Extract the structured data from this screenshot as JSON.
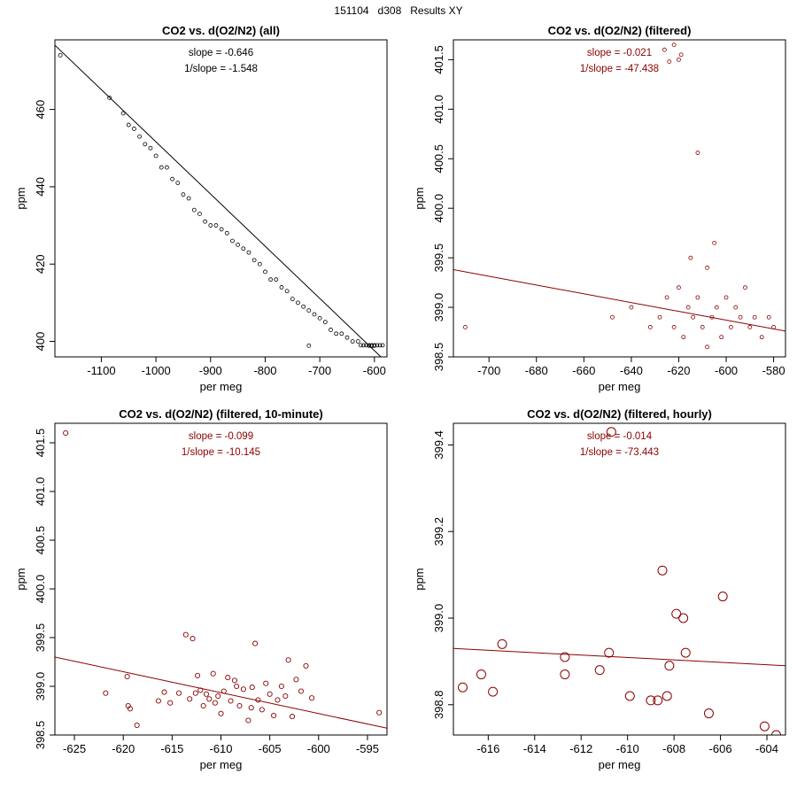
{
  "figure": {
    "title": "151104   d308   Results XY"
  },
  "chart_data": [
    {
      "type": "scatter",
      "title": "CO2 vs. d(O2/N2) (all)",
      "xlabel": "per meg",
      "ylabel": "ppm",
      "xlim": [
        -1185,
        -577
      ],
      "ylim": [
        396,
        478
      ],
      "xticks": [
        -1100,
        -1000,
        -900,
        -800,
        -700,
        -600
      ],
      "yticks": [
        400,
        420,
        440,
        460
      ],
      "point_color": "#000000",
      "line_color": "#000000",
      "annotations": [
        "slope = -0.646",
        "1/slope = -1.548"
      ],
      "fit": {
        "slope": -0.646,
        "x": [
          -1185,
          -577
        ],
        "y": [
          476.6,
          394.5
        ]
      },
      "series": [
        {
          "name": "all points",
          "color": "#000000",
          "x": [
            -1175,
            -1085,
            -1060,
            -1050,
            -1040,
            -1030,
            -1020,
            -1010,
            -1000,
            -990,
            -980,
            -970,
            -960,
            -950,
            -940,
            -930,
            -920,
            -910,
            -900,
            -890,
            -880,
            -870,
            -860,
            -850,
            -840,
            -830,
            -820,
            -810,
            -800,
            -790,
            -780,
            -770,
            -760,
            -750,
            -740,
            -730,
            -720,
            -710,
            -700,
            -690,
            -680,
            -670,
            -660,
            -650,
            -640,
            -630,
            -625,
            -620,
            -615,
            -610,
            -605,
            -600,
            -595,
            -590,
            -585,
            -720,
            -610,
            -605,
            -600
          ],
          "y": [
            474,
            463,
            459,
            456,
            455,
            453,
            451,
            450,
            448,
            445,
            445,
            442,
            441,
            438,
            437,
            434,
            433,
            431,
            430,
            430,
            429,
            428,
            426,
            425,
            424,
            423,
            421,
            420,
            418,
            416,
            416,
            414,
            413,
            411,
            410,
            409,
            408,
            407,
            406,
            405,
            403,
            402,
            402,
            401,
            400,
            400,
            399,
            399,
            399,
            399,
            399,
            399,
            399,
            399,
            399,
            398.9,
            398.9,
            398.8,
            398.9
          ]
        }
      ]
    },
    {
      "type": "scatter",
      "title": "CO2 vs. d(O2/N2) (filtered)",
      "xlabel": "per meg",
      "ylabel": "ppm",
      "xlim": [
        -715,
        -575
      ],
      "ylim": [
        398.5,
        401.7
      ],
      "xticks": [
        -700,
        -680,
        -660,
        -640,
        -620,
        -600,
        -580
      ],
      "yticks": [
        398.5,
        399.0,
        399.5,
        400.0,
        400.5,
        401.0,
        401.5
      ],
      "point_color": "#8b0000",
      "line_color": "#8b0000",
      "annotations": [
        "slope = -0.021",
        "1/slope = -47.438"
      ],
      "fit": {
        "slope": -0.021,
        "x": [
          -715,
          -575
        ],
        "y": [
          399.38,
          398.76
        ]
      },
      "series": [
        {
          "name": "filtered points",
          "color": "#8b0000",
          "x": [
            -710,
            -648,
            -640,
            -632,
            -628,
            -625,
            -622,
            -620,
            -618,
            -616,
            -614,
            -612,
            -610,
            -608,
            -606,
            -604,
            -602,
            -600,
            -598,
            -596,
            -594,
            -592,
            -590,
            -588,
            -585,
            -582,
            -580,
            -622,
            -619,
            -626,
            -620,
            -624,
            -612,
            -605,
            -615,
            -608
          ],
          "y": [
            398.8,
            398.9,
            399.0,
            398.8,
            398.9,
            399.1,
            398.8,
            399.2,
            398.7,
            399.0,
            398.9,
            399.1,
            398.8,
            399.4,
            398.9,
            399.0,
            398.7,
            399.1,
            398.8,
            399.0,
            398.9,
            399.2,
            398.8,
            398.9,
            398.7,
            398.9,
            398.8,
            401.65,
            401.55,
            401.6,
            401.5,
            401.48,
            400.56,
            399.65,
            399.5,
            398.6
          ]
        }
      ]
    },
    {
      "type": "scatter",
      "title": "CO2 vs. d(O2/N2) (filtered, 10-minute)",
      "xlabel": "per meg",
      "ylabel": "ppm",
      "xlim": [
        -627,
        -593
      ],
      "ylim": [
        398.5,
        401.7
      ],
      "xticks": [
        -625,
        -620,
        -615,
        -610,
        -605,
        -600,
        -595
      ],
      "yticks": [
        398.5,
        399.0,
        399.5,
        400.0,
        400.5,
        401.0,
        401.5
      ],
      "point_color": "#8b0000",
      "line_color": "#8b0000",
      "annotations": [
        "slope = -0.099",
        "1/slope = -10.145"
      ],
      "fit": {
        "slope": -0.099,
        "x": [
          -627,
          -593
        ],
        "y": [
          399.3,
          398.57
        ]
      },
      "series": [
        {
          "name": "10-minute means",
          "color": "#8b0000",
          "x": [
            -625.9,
            -621.8,
            -619.6,
            -619.5,
            -619.3,
            -618.6,
            -616.4,
            -615.8,
            -615.2,
            -614.3,
            -613.6,
            -613.2,
            -612.9,
            -612.4,
            -612.1,
            -611.8,
            -611.5,
            -611.2,
            -610.8,
            -610.3,
            -610.0,
            -609.7,
            -609.3,
            -609.0,
            -608.6,
            -608.1,
            -607.7,
            -607.2,
            -606.8,
            -606.5,
            -606.2,
            -605.8,
            -605.4,
            -605.0,
            -604.6,
            -604.2,
            -603.8,
            -603.4,
            -603.1,
            -602.7,
            -602.3,
            -601.8,
            -601.3,
            -600.7,
            -593.8,
            -612.6,
            -606.9,
            -610.6,
            -608.4
          ],
          "y": [
            401.6,
            398.93,
            399.1,
            398.8,
            398.77,
            398.6,
            398.85,
            398.94,
            398.83,
            398.93,
            399.53,
            398.87,
            399.49,
            399.11,
            398.96,
            398.8,
            398.92,
            398.87,
            399.13,
            398.9,
            398.72,
            398.95,
            399.09,
            398.85,
            399.06,
            398.8,
            398.97,
            398.65,
            398.99,
            399.44,
            398.86,
            398.76,
            399.03,
            398.92,
            398.7,
            398.86,
            399.0,
            398.9,
            399.27,
            398.69,
            399.07,
            398.95,
            399.21,
            398.88,
            398.73,
            398.93,
            398.78,
            398.83,
            399.0
          ]
        }
      ]
    },
    {
      "type": "scatter",
      "title": "CO2 vs. d(O2/N2) (filtered, hourly)",
      "xlabel": "per meg",
      "ylabel": "ppm",
      "xlim": [
        -617.5,
        -603.2
      ],
      "ylim": [
        398.73,
        399.45
      ],
      "xticks": [
        -616,
        -614,
        -612,
        -610,
        -608,
        -606,
        -604
      ],
      "yticks": [
        398.8,
        399.0,
        399.2,
        399.4
      ],
      "point_color": "#8b0000",
      "line_color": "#8b0000",
      "annotations": [
        "slope = -0.014",
        "1/slope = -73.443"
      ],
      "fit": {
        "slope": -0.014,
        "x": [
          -617.5,
          -603.2
        ],
        "y": [
          398.93,
          398.89
        ]
      },
      "series": [
        {
          "name": "hourly means",
          "color": "#8b0000",
          "x": [
            -617.1,
            -616.3,
            -615.8,
            -615.4,
            -612.7,
            -612.7,
            -611.2,
            -610.8,
            -610.7,
            -609.9,
            -609.0,
            -608.7,
            -608.5,
            -608.3,
            -608.2,
            -607.9,
            -607.6,
            -607.5,
            -606.5,
            -605.9,
            -604.1,
            -603.6
          ],
          "y": [
            398.84,
            398.87,
            398.83,
            398.94,
            398.91,
            398.87,
            398.88,
            398.92,
            399.43,
            398.82,
            398.81,
            398.81,
            399.11,
            398.82,
            398.89,
            399.01,
            399.0,
            398.92,
            398.78,
            399.05,
            398.75,
            398.73
          ]
        }
      ]
    }
  ]
}
